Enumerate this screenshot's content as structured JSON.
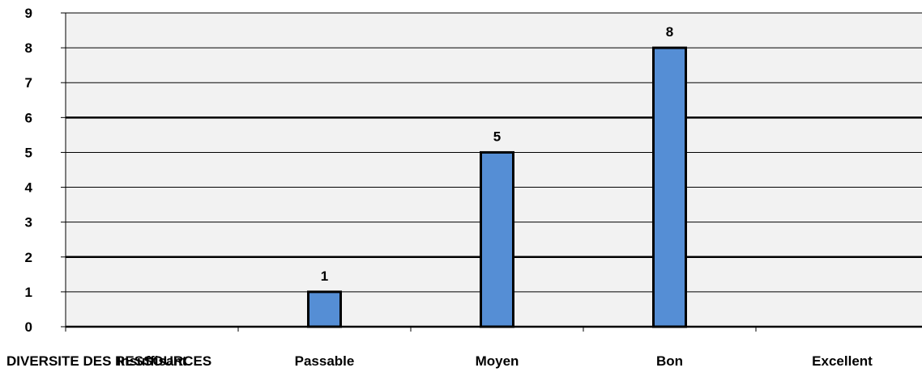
{
  "chart_data": {
    "type": "bar",
    "categories": [
      "Insuffisant",
      "Passable",
      "Moyen",
      "Bon",
      "Excellent"
    ],
    "values": [
      0,
      1,
      5,
      8,
      0
    ],
    "data_labels": [
      "",
      "1",
      "5",
      "8",
      ""
    ],
    "ylim": [
      0,
      9
    ],
    "yticks": [
      "0",
      "1",
      "2",
      "3",
      "4",
      "5",
      "6",
      "7",
      "8",
      "9"
    ],
    "bold_gridlines": [
      2,
      6
    ],
    "overlay_text": "DIVERSITE DES RESSOURCES",
    "grid": true,
    "legend": "none",
    "colors": {
      "bar_fill": "#558ed5",
      "bar_stroke": "#000000",
      "plot_bg": "#f2f2f2",
      "gridline": "#000000"
    }
  }
}
